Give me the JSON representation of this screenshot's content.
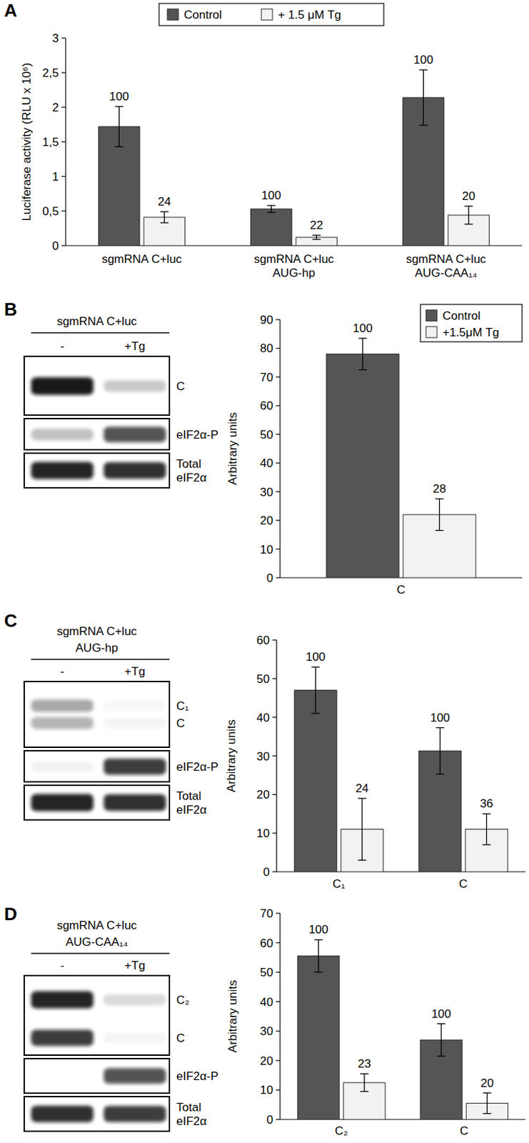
{
  "panel_labels": [
    "A",
    "B",
    "C",
    "D"
  ],
  "chart_data": [
    {
      "type": "bar",
      "y_label": "Luciferase activity (RLU x 10⁶)",
      "categories": [
        "sgmRNA C+luc",
        "sgmRNA C+luc\nAUG-hp",
        "sgmRNA C+luc\nAUG-CAA₁₄"
      ],
      "series": [
        {
          "name": "Control",
          "color": "#555555",
          "values": [
            1.72,
            0.53,
            2.14
          ],
          "errors": [
            0.29,
            0.05,
            0.4
          ],
          "relative": [
            100,
            100,
            100
          ]
        },
        {
          "name": "+ 1.5 μM Tg",
          "color": "#f2f2f2",
          "values": [
            0.41,
            0.12,
            0.44
          ],
          "errors": [
            0.08,
            0.03,
            0.13
          ],
          "relative": [
            24,
            22,
            20
          ]
        }
      ],
      "ylim": [
        0,
        3
      ],
      "yticks": [
        0,
        {
          "value": 0.5,
          "label": "0,5"
        },
        1,
        {
          "value": 1.5,
          "label": "1,5"
        },
        2,
        {
          "value": 2.5,
          "label": "2,5"
        },
        3
      ],
      "legend": "top",
      "grid": false
    },
    {
      "type": "bar",
      "y_label": "Arbitrary units",
      "categories": [
        "C"
      ],
      "series": [
        {
          "name": "Control",
          "color": "#555555",
          "values": [
            78
          ],
          "errors": [
            5.5
          ],
          "relative": [
            100
          ]
        },
        {
          "name": "+1.5μM Tg",
          "color": "#f2f2f2",
          "values": [
            22
          ],
          "errors": [
            5.5
          ],
          "relative": [
            28
          ]
        }
      ],
      "ylim": [
        0,
        90
      ],
      "yticks": [
        0,
        10,
        20,
        30,
        40,
        50,
        60,
        70,
        80,
        90
      ],
      "legend": "top-right",
      "grid": false
    },
    {
      "type": "bar",
      "y_label": "Arbitrary units",
      "categories": [
        "C₁",
        "C"
      ],
      "series": [
        {
          "color": "#555555",
          "values": [
            47,
            31.3
          ],
          "errors": [
            6,
            6
          ],
          "relative": [
            100,
            100
          ]
        },
        {
          "color": "#f2f2f2",
          "values": [
            11,
            11
          ],
          "errors": [
            8,
            4
          ],
          "relative": [
            24,
            36
          ]
        }
      ],
      "ylim": [
        0,
        60
      ],
      "yticks": [
        0,
        10,
        20,
        30,
        40,
        50,
        60
      ],
      "grid": false
    },
    {
      "type": "bar",
      "y_label": "Arbitrary units",
      "categories": [
        "C₂",
        "C"
      ],
      "series": [
        {
          "color": "#555555",
          "values": [
            55.5,
            27
          ],
          "errors": [
            5.5,
            5.5
          ],
          "relative": [
            100,
            100
          ]
        },
        {
          "color": "#f2f2f2",
          "values": [
            12.5,
            5.5
          ],
          "errors": [
            3,
            3.5
          ],
          "relative": [
            23,
            20
          ]
        }
      ],
      "ylim": [
        0,
        70
      ],
      "yticks": [
        0,
        10,
        20,
        30,
        40,
        50,
        60,
        70
      ],
      "grid": false
    }
  ],
  "blots": [
    {
      "title": "sgmRNA C+luc",
      "lanes": [
        "-",
        "+Tg"
      ],
      "rows": [
        [
          "C"
        ],
        [
          "eIF2α-P"
        ],
        [
          "Total\neIF2α"
        ]
      ]
    },
    {
      "title": "sgmRNA C+luc\nAUG-hp",
      "lanes": [
        "-",
        "+Tg"
      ],
      "rows": [
        [
          "C₁",
          "C"
        ],
        [
          "eIF2α-P"
        ],
        [
          "Total\neIF2α"
        ]
      ]
    },
    {
      "title": "sgmRNA C+luc\nAUG-CAA₁₄",
      "lanes": [
        "-",
        "+Tg"
      ],
      "rows": [
        [
          "C₂",
          "C"
        ],
        [
          "eIF2α-P"
        ],
        [
          "Total\neIF2α"
        ]
      ]
    }
  ]
}
